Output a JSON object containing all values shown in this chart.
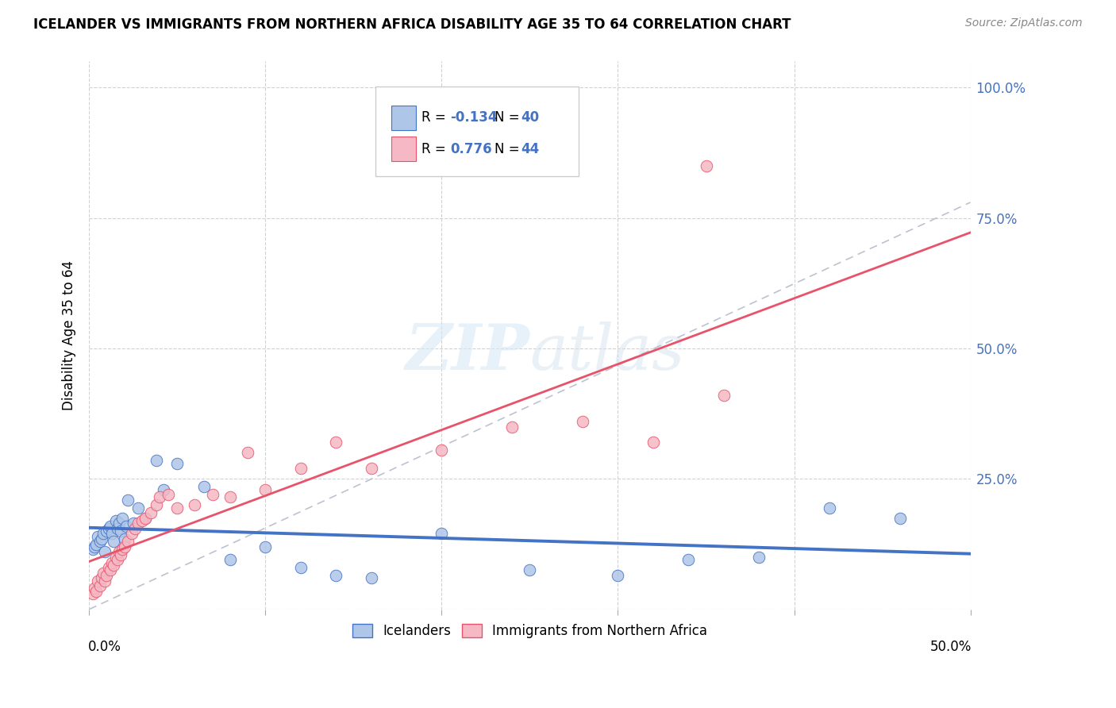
{
  "title": "ICELANDER VS IMMIGRANTS FROM NORTHERN AFRICA DISABILITY AGE 35 TO 64 CORRELATION CHART",
  "source": "Source: ZipAtlas.com",
  "ylabel": "Disability Age 35 to 64",
  "legend_label1": "Icelanders",
  "legend_label2": "Immigrants from Northern Africa",
  "R1": "-0.134",
  "N1": "40",
  "R2": "0.776",
  "N2": "44",
  "color_blue_fill": "#aec6e8",
  "color_pink_fill": "#f5b8c4",
  "color_blue_line": "#4472C4",
  "color_pink_line": "#e8536a",
  "color_dash": "#b0b8c8",
  "xlim": [
    0.0,
    0.5
  ],
  "ylim": [
    0.0,
    1.05
  ],
  "yticks": [
    0.0,
    0.25,
    0.5,
    0.75,
    1.0
  ],
  "ytick_labels": [
    "",
    "25.0%",
    "50.0%",
    "75.0%",
    "100.0%"
  ],
  "icelanders_x": [
    0.002,
    0.003,
    0.004,
    0.005,
    0.006,
    0.007,
    0.008,
    0.009,
    0.01,
    0.011,
    0.012,
    0.013,
    0.014,
    0.015,
    0.016,
    0.017,
    0.018,
    0.019,
    0.02,
    0.021,
    0.022,
    0.025,
    0.028,
    0.032,
    0.038,
    0.042,
    0.05,
    0.065,
    0.08,
    0.1,
    0.12,
    0.14,
    0.16,
    0.2,
    0.25,
    0.3,
    0.34,
    0.38,
    0.42,
    0.46
  ],
  "icelanders_y": [
    0.115,
    0.12,
    0.125,
    0.14,
    0.13,
    0.135,
    0.145,
    0.11,
    0.15,
    0.155,
    0.16,
    0.145,
    0.13,
    0.17,
    0.155,
    0.165,
    0.15,
    0.175,
    0.135,
    0.16,
    0.21,
    0.165,
    0.195,
    0.175,
    0.285,
    0.23,
    0.28,
    0.235,
    0.095,
    0.12,
    0.08,
    0.065,
    0.06,
    0.145,
    0.075,
    0.065,
    0.095,
    0.1,
    0.195,
    0.175
  ],
  "immigrants_x": [
    0.002,
    0.003,
    0.004,
    0.005,
    0.006,
    0.007,
    0.008,
    0.009,
    0.01,
    0.011,
    0.012,
    0.013,
    0.014,
    0.015,
    0.016,
    0.017,
    0.018,
    0.019,
    0.02,
    0.022,
    0.024,
    0.026,
    0.028,
    0.03,
    0.032,
    0.035,
    0.038,
    0.04,
    0.045,
    0.05,
    0.06,
    0.07,
    0.08,
    0.09,
    0.1,
    0.12,
    0.14,
    0.16,
    0.2,
    0.24,
    0.28,
    0.32,
    0.36,
    0.35
  ],
  "immigrants_y": [
    0.03,
    0.04,
    0.035,
    0.055,
    0.045,
    0.06,
    0.07,
    0.055,
    0.065,
    0.08,
    0.075,
    0.09,
    0.085,
    0.1,
    0.095,
    0.11,
    0.105,
    0.115,
    0.12,
    0.13,
    0.145,
    0.155,
    0.165,
    0.17,
    0.175,
    0.185,
    0.2,
    0.215,
    0.22,
    0.195,
    0.2,
    0.22,
    0.215,
    0.3,
    0.23,
    0.27,
    0.32,
    0.27,
    0.305,
    0.35,
    0.36,
    0.32,
    0.41,
    0.85
  ]
}
